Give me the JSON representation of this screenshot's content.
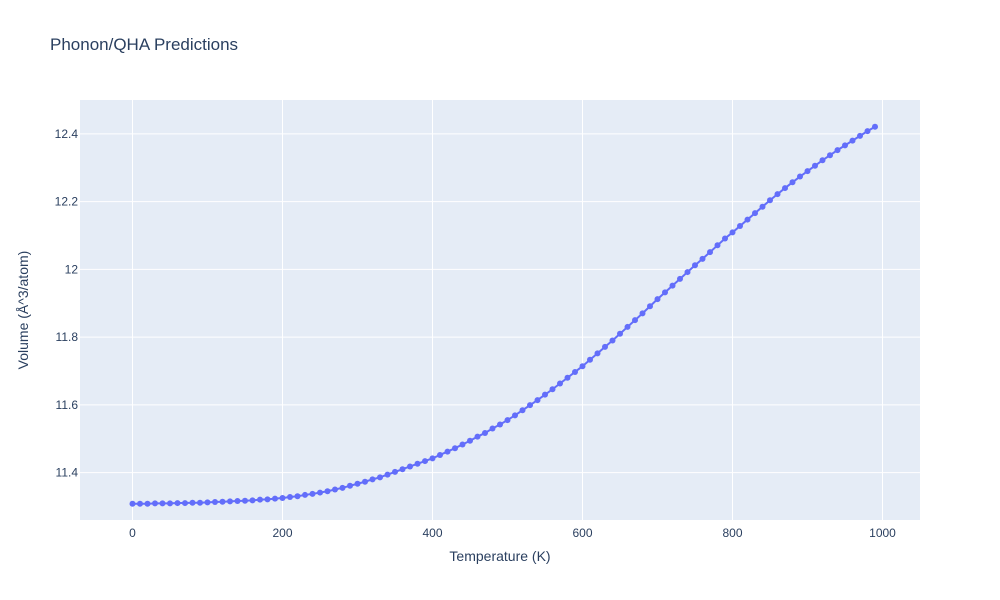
{
  "chart_data": {
    "type": "line",
    "title": "Phonon/QHA Predictions",
    "xlabel": "Temperature (K)",
    "ylabel": "Volume (Å^3/atom)",
    "xlim": [
      -70,
      1050
    ],
    "ylim": [
      11.26,
      12.5
    ],
    "xticks": [
      0,
      200,
      400,
      600,
      800,
      1000
    ],
    "xtick_labels": [
      "0",
      "200",
      "400",
      "600",
      "800",
      "1000"
    ],
    "yticks": [
      11.4,
      11.6,
      11.8,
      12.0,
      12.2,
      12.4
    ],
    "ytick_labels": [
      "11.4",
      "11.6",
      "11.8",
      "12",
      "12.2",
      "12.4"
    ],
    "grid": true,
    "legend": "none",
    "colors": {
      "series": "#636efa",
      "plot_bg": "#e5ecf6",
      "grid": "#ffffff",
      "text": "#2a3f5f"
    },
    "series": [
      {
        "x": [
          0,
          10,
          20,
          30,
          40,
          50,
          60,
          70,
          80,
          90,
          100,
          110,
          120,
          130,
          140,
          150,
          160,
          170,
          180,
          190,
          200,
          210,
          220,
          230,
          240,
          250,
          260,
          270,
          280,
          290,
          300,
          310,
          320,
          330,
          340,
          350,
          360,
          370,
          380,
          390,
          400,
          410,
          420,
          430,
          440,
          450,
          460,
          470,
          480,
          490,
          500,
          510,
          520,
          530,
          540,
          550,
          560,
          570,
          580,
          590,
          600,
          610,
          620,
          630,
          640,
          650,
          660,
          670,
          680,
          690,
          700,
          710,
          720,
          730,
          740,
          750,
          760,
          770,
          780,
          790,
          800,
          810,
          820,
          830,
          840,
          850,
          860,
          870,
          880,
          890,
          900,
          910,
          920,
          930,
          940,
          950,
          960,
          970,
          980,
          990
        ],
        "y": [
          11.308,
          11.308,
          11.308,
          11.309,
          11.309,
          11.309,
          11.31,
          11.31,
          11.311,
          11.311,
          11.312,
          11.313,
          11.314,
          11.315,
          11.316,
          11.317,
          11.318,
          11.32,
          11.321,
          11.323,
          11.325,
          11.328,
          11.33,
          11.334,
          11.337,
          11.341,
          11.345,
          11.35,
          11.355,
          11.361,
          11.367,
          11.373,
          11.38,
          11.386,
          11.394,
          11.402,
          11.41,
          11.418,
          11.426,
          11.434,
          11.442,
          11.452,
          11.462,
          11.472,
          11.483,
          11.494,
          11.506,
          11.517,
          11.53,
          11.542,
          11.555,
          11.569,
          11.584,
          11.599,
          11.614,
          11.63,
          11.646,
          11.663,
          11.68,
          11.697,
          11.714,
          11.733,
          11.752,
          11.771,
          11.79,
          11.81,
          11.83,
          11.85,
          11.87,
          11.891,
          11.912,
          11.932,
          11.952,
          11.972,
          11.992,
          12.012,
          12.031,
          12.051,
          12.071,
          12.091,
          12.109,
          12.128,
          12.147,
          12.166,
          12.185,
          12.204,
          12.222,
          12.24,
          12.257,
          12.274,
          12.29,
          12.306,
          12.322,
          12.337,
          12.352,
          12.366,
          12.38,
          12.394,
          12.408,
          12.421
        ]
      }
    ]
  }
}
